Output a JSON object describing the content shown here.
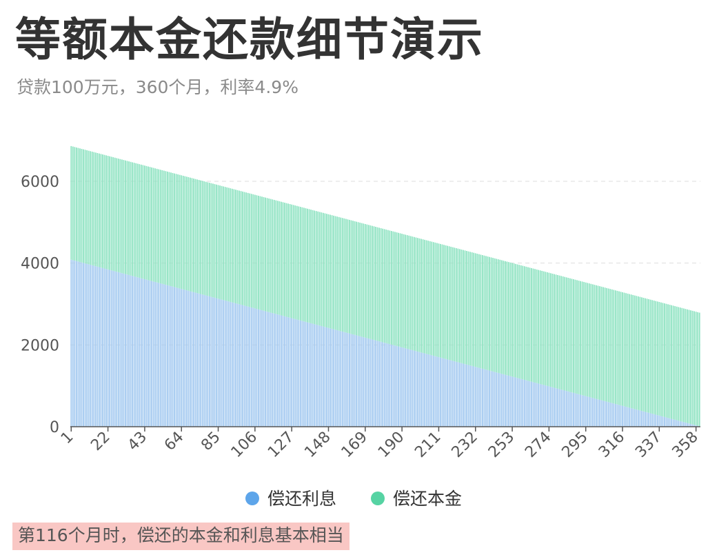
{
  "title": "等额本金还款细节演示",
  "subtitle": "贷款100万元，360个月，利率4.9%",
  "note": "第116个月时，偿还的本金和利息基本相当",
  "colors": {
    "interest": "#a3c9f0",
    "interest_legend": "#5da5ea",
    "principal": "#8fe3c2",
    "principal_legend": "#56d3a3",
    "axis": "#555555",
    "grid": "#dddddd"
  },
  "chart_data": {
    "type": "bar",
    "stacked": true,
    "x_start": 1,
    "x_end": 360,
    "x_ticks": [
      1,
      22,
      43,
      64,
      85,
      106,
      127,
      148,
      169,
      190,
      211,
      232,
      253,
      274,
      295,
      316,
      337,
      358
    ],
    "y_ticks": [
      0,
      2000,
      4000,
      6000
    ],
    "ylim": [
      0,
      6800
    ],
    "grid": "horizontal dashed",
    "legend_position": "bottom",
    "series": [
      {
        "name": "偿还利息",
        "start_value": 4083.33,
        "end_value": 11.34
      },
      {
        "name": "偿还本金",
        "start_value": 2777.78,
        "end_value": 2777.78
      }
    ]
  }
}
